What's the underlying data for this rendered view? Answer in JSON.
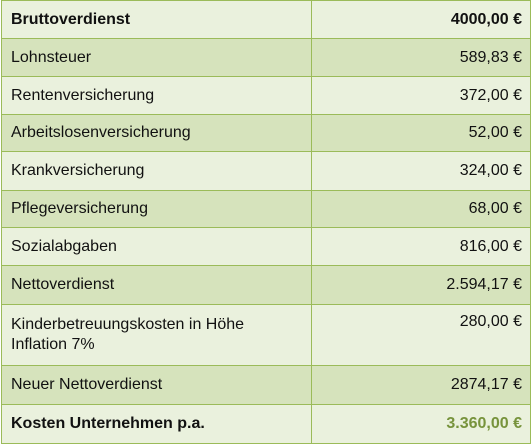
{
  "rows": [
    {
      "label": "Bruttoverdienst",
      "value": "4000,00 €"
    },
    {
      "label": "Lohnsteuer",
      "value": "589,83 €"
    },
    {
      "label": "Rentenversicherung",
      "value": "372,00 €"
    },
    {
      "label": "Arbeitslosenversicherung",
      "value": "52,00 €"
    },
    {
      "label": "Krankversicherung",
      "value": "324,00 €"
    },
    {
      "label": "Pflegeversicherung",
      "value": "68,00 €"
    },
    {
      "label": "Sozialabgaben",
      "value": "816,00 €"
    },
    {
      "label": "Nettoverdienst",
      "value": "2.594,17 €"
    },
    {
      "label_line1": "Kinderbetreuungskosten in Höhe",
      "label_line2": "Inflation 7%",
      "value": "280,00 €"
    },
    {
      "label": "Neuer Nettoverdienst",
      "value": "2874,17 €"
    },
    {
      "label": "Kosten Unternehmen p.a.",
      "value": "3.360,00 €"
    }
  ],
  "colors": {
    "border": "#9bbb59",
    "row_light": "#eaf1dd",
    "row_dark": "#d6e3bc",
    "accent_value": "#77933c"
  }
}
